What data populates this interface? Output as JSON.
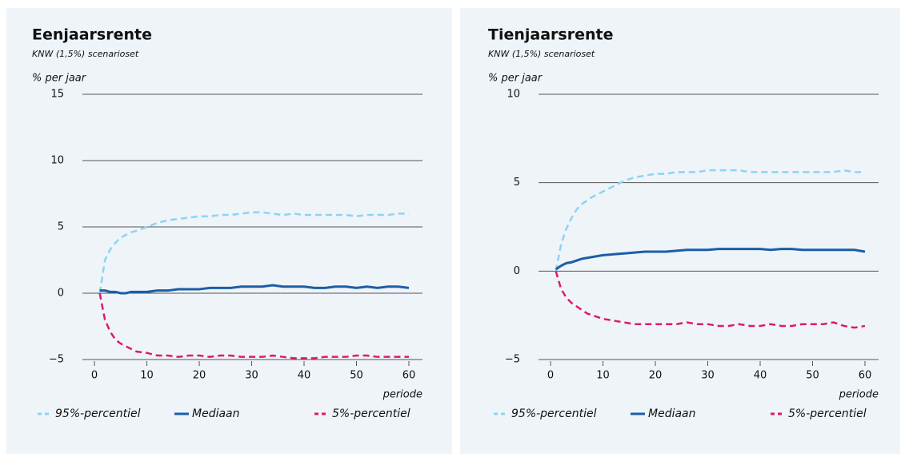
{
  "chart_data": [
    {
      "type": "line",
      "title": "Eenjaarsrente",
      "subtitle": "KNW (1,5%) scenarioset",
      "y_label": "% per jaar",
      "x_label": "periode",
      "x": [
        1,
        2,
        3,
        4,
        5,
        6,
        7,
        8,
        10,
        12,
        14,
        16,
        18,
        20,
        22,
        24,
        26,
        28,
        30,
        32,
        34,
        36,
        38,
        40,
        42,
        44,
        46,
        48,
        50,
        52,
        54,
        56,
        58,
        60
      ],
      "xlim": [
        -2.3,
        62.6
      ],
      "xticks": [
        0,
        10,
        20,
        30,
        40,
        50,
        60
      ],
      "ylim": [
        -5,
        15
      ],
      "yticks": [
        {
          "value": -5,
          "label": "−5"
        },
        0,
        5,
        10,
        15
      ],
      "grid": true,
      "series": [
        {
          "name": "95%-percentiel",
          "color": "#8dd3f4",
          "dashed": true,
          "values": [
            0,
            2.5,
            3.3,
            3.8,
            4.2,
            4.4,
            4.6,
            4.7,
            5.0,
            5.3,
            5.5,
            5.6,
            5.7,
            5.8,
            5.8,
            5.9,
            5.9,
            6.0,
            6.1,
            6.1,
            6.0,
            5.9,
            6.0,
            5.9,
            5.9,
            5.9,
            5.9,
            5.9,
            5.8,
            5.9,
            5.9,
            5.9,
            6.0,
            6.0
          ]
        },
        {
          "name": "Mediaan",
          "color": "#1b5ea6",
          "dashed": false,
          "values": [
            0.2,
            0.2,
            0.1,
            0.1,
            0.0,
            0.0,
            0.1,
            0.1,
            0.1,
            0.2,
            0.2,
            0.3,
            0.3,
            0.3,
            0.4,
            0.4,
            0.4,
            0.5,
            0.5,
            0.5,
            0.6,
            0.5,
            0.5,
            0.5,
            0.4,
            0.4,
            0.5,
            0.5,
            0.4,
            0.5,
            0.4,
            0.5,
            0.5,
            0.4
          ]
        },
        {
          "name": "5%-percentiel",
          "color": "#dd1a6d",
          "dashed": true,
          "values": [
            0,
            -2.0,
            -2.9,
            -3.5,
            -3.8,
            -4.0,
            -4.2,
            -4.4,
            -4.5,
            -4.7,
            -4.7,
            -4.8,
            -4.7,
            -4.7,
            -4.8,
            -4.7,
            -4.7,
            -4.8,
            -4.8,
            -4.8,
            -4.7,
            -4.8,
            -4.9,
            -4.9,
            -4.9,
            -4.8,
            -4.8,
            -4.8,
            -4.7,
            -4.7,
            -4.8,
            -4.8,
            -4.8,
            -4.8
          ]
        }
      ]
    },
    {
      "type": "line",
      "title": "Tienjaarsrente",
      "subtitle": "KNW (1,5%) scenarioset",
      "y_label": "% per jaar",
      "x_label": "periode",
      "x": [
        1,
        2,
        3,
        4,
        5,
        6,
        7,
        8,
        10,
        12,
        14,
        16,
        18,
        20,
        22,
        24,
        26,
        28,
        30,
        32,
        34,
        36,
        38,
        40,
        42,
        44,
        46,
        48,
        50,
        52,
        54,
        56,
        58,
        60
      ],
      "xlim": [
        -2.3,
        62.6
      ],
      "xticks": [
        0,
        10,
        20,
        30,
        40,
        50,
        60
      ],
      "ylim": [
        -5,
        10
      ],
      "yticks": [
        {
          "value": -5,
          "label": "−5"
        },
        0,
        5,
        10
      ],
      "grid": true,
      "series": [
        {
          "name": "95%-percentiel",
          "color": "#8dd3f4",
          "dashed": true,
          "values": [
            0,
            1.5,
            2.4,
            3.0,
            3.5,
            3.8,
            4.0,
            4.2,
            4.5,
            4.8,
            5.1,
            5.3,
            5.4,
            5.5,
            5.5,
            5.6,
            5.6,
            5.6,
            5.7,
            5.7,
            5.7,
            5.7,
            5.6,
            5.6,
            5.6,
            5.6,
            5.6,
            5.6,
            5.6,
            5.6,
            5.6,
            5.7,
            5.6,
            5.6
          ]
        },
        {
          "name": "Mediaan",
          "color": "#1b5ea6",
          "dashed": false,
          "values": [
            0.1,
            0.3,
            0.45,
            0.5,
            0.6,
            0.7,
            0.75,
            0.8,
            0.9,
            0.95,
            1.0,
            1.05,
            1.1,
            1.1,
            1.1,
            1.15,
            1.2,
            1.2,
            1.2,
            1.25,
            1.25,
            1.25,
            1.25,
            1.25,
            1.2,
            1.25,
            1.25,
            1.2,
            1.2,
            1.2,
            1.2,
            1.2,
            1.2,
            1.1
          ]
        },
        {
          "name": "5%-percentiel",
          "color": "#dd1a6d",
          "dashed": true,
          "values": [
            0,
            -1.0,
            -1.5,
            -1.8,
            -2.0,
            -2.2,
            -2.4,
            -2.5,
            -2.7,
            -2.8,
            -2.9,
            -3.0,
            -3.0,
            -3.0,
            -3.0,
            -3.0,
            -2.9,
            -3.0,
            -3.0,
            -3.1,
            -3.1,
            -3.0,
            -3.1,
            -3.1,
            -3.0,
            -3.1,
            -3.1,
            -3.0,
            -3.0,
            -3.0,
            -2.9,
            -3.1,
            -3.2,
            -3.1
          ]
        }
      ]
    }
  ]
}
